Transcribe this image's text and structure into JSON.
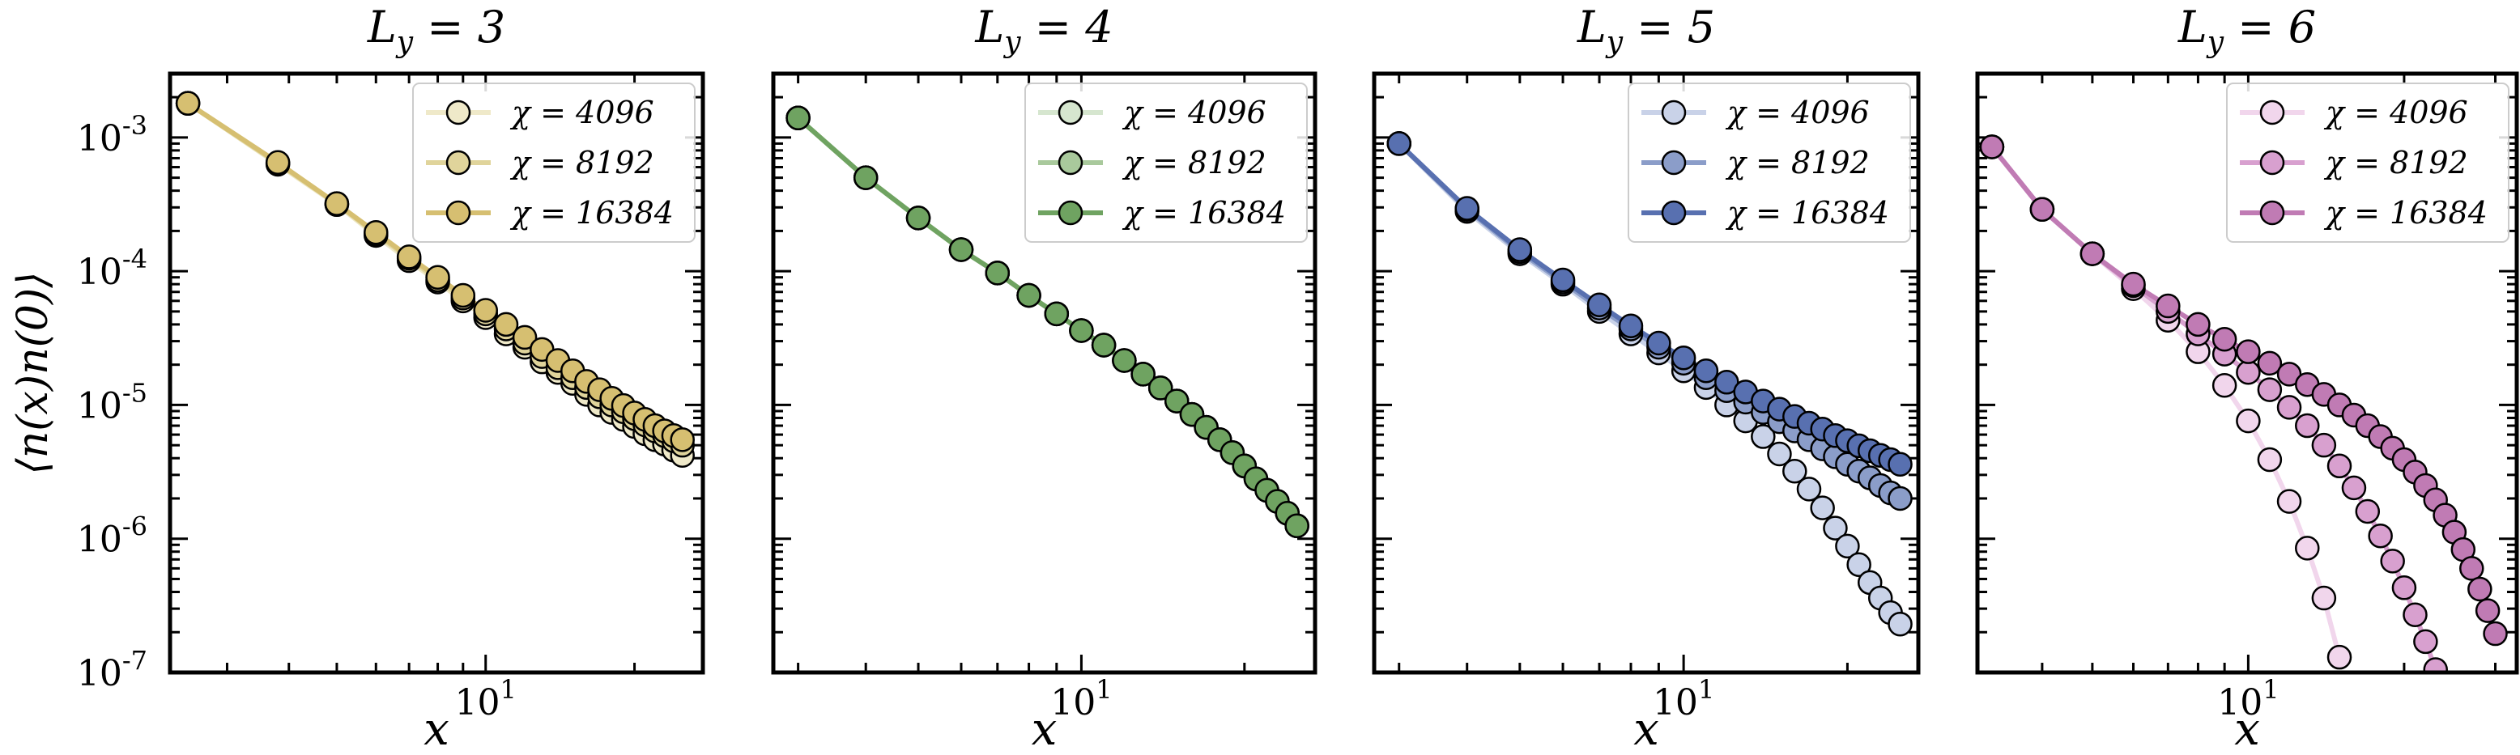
{
  "chart_data": [
    {
      "type": "line",
      "title": "L_y = 3",
      "xlabel": "x",
      "ylabel": "⟨n(x)n(0)⟩",
      "xscale": "log",
      "yscale": "log",
      "xlim": [
        2.3,
        27.5
      ],
      "ylim": [
        1e-07,
        0.003
      ],
      "x_tick_label": "10^1",
      "legend_position": "top-right",
      "colors": [
        "#efe9c9",
        "#e0d49b",
        "#d6bf71"
      ],
      "series": [
        {
          "name": "χ = 4096",
          "x": [
            2.5,
            3.8,
            5,
            6,
            7,
            8,
            9,
            10,
            11,
            12,
            13,
            14,
            15,
            16,
            17,
            18,
            19,
            20,
            21,
            22,
            23,
            24,
            25
          ],
          "y": [
            0.0018,
            0.00063,
            0.000315,
            0.000185,
            0.00012,
            8.3e-05,
            6e-05,
            4.5e-05,
            3.4e-05,
            2.7e-05,
            2.1e-05,
            1.75e-05,
            1.45e-05,
            1.2e-05,
            1e-05,
            8.8e-06,
            7.8e-06,
            6.9e-06,
            6.1e-06,
            5.5e-06,
            5.1e-06,
            4.6e-06,
            4.2e-06
          ]
        },
        {
          "name": "χ = 8192",
          "x": [
            2.5,
            3.8,
            5,
            6,
            7,
            8,
            9,
            10,
            11,
            12,
            13,
            14,
            15,
            16,
            17,
            18,
            19,
            20,
            21,
            22,
            23,
            24,
            25
          ],
          "y": [
            0.0018,
            0.00064,
            0.00032,
            0.00019,
            0.000125,
            8.6e-05,
            6.3e-05,
            4.8e-05,
            3.7e-05,
            2.9e-05,
            2.3e-05,
            1.9e-05,
            1.6e-05,
            1.35e-05,
            1.15e-05,
            1e-05,
            8.9e-06,
            7.9e-06,
            7.1e-06,
            6.4e-06,
            5.9e-06,
            5.4e-06,
            5e-06
          ]
        },
        {
          "name": "χ = 16384",
          "x": [
            2.5,
            3.8,
            5,
            6,
            7,
            8,
            9,
            10,
            11,
            12,
            13,
            14,
            15,
            16,
            17,
            18,
            19,
            20,
            21,
            22,
            23,
            24,
            25
          ],
          "y": [
            0.0018,
            0.00065,
            0.00032,
            0.000195,
            0.000128,
            9e-05,
            6.6e-05,
            5.1e-05,
            4e-05,
            3.2e-05,
            2.6e-05,
            2.15e-05,
            1.8e-05,
            1.5e-05,
            1.3e-05,
            1.12e-05,
            9.9e-06,
            8.7e-06,
            7.8e-06,
            7e-06,
            6.4e-06,
            5.9e-06,
            5.5e-06
          ]
        }
      ]
    },
    {
      "type": "line",
      "title": "L_y = 4",
      "xlabel": "x",
      "ylabel": "",
      "xscale": "log",
      "yscale": "log",
      "xlim": [
        2.7,
        27
      ],
      "ylim": [
        1e-07,
        0.003
      ],
      "x_tick_label": "10^1",
      "legend_position": "top-right",
      "colors": [
        "#d6e6cf",
        "#a9c99c",
        "#6fa361"
      ],
      "series": [
        {
          "name": "χ = 4096",
          "x": [
            3,
            4,
            5,
            6,
            7,
            8,
            9,
            10,
            11,
            12,
            13,
            14,
            15,
            16,
            17,
            18,
            19,
            20,
            21,
            22,
            23,
            24,
            25
          ],
          "y": [
            0.0014,
            0.0005,
            0.00025,
            0.000145,
            9.7e-05,
            6.6e-05,
            4.8e-05,
            3.6e-05,
            2.8e-05,
            2.15e-05,
            1.7e-05,
            1.34e-05,
            1.07e-05,
            8.5e-06,
            6.8e-06,
            5.5e-06,
            4.4e-06,
            3.5e-06,
            2.8e-06,
            2.3e-06,
            1.9e-06,
            1.55e-06,
            1.25e-06
          ]
        },
        {
          "name": "χ = 8192",
          "x": [
            3,
            4,
            5,
            6,
            7,
            8,
            9,
            10,
            11,
            12,
            13,
            14,
            15,
            16,
            17,
            18,
            19,
            20,
            21,
            22,
            23,
            24,
            25
          ],
          "y": [
            0.0014,
            0.0005,
            0.00025,
            0.000145,
            9.7e-05,
            6.6e-05,
            4.8e-05,
            3.6e-05,
            2.8e-05,
            2.15e-05,
            1.7e-05,
            1.34e-05,
            1.07e-05,
            8.5e-06,
            6.8e-06,
            5.5e-06,
            4.4e-06,
            3.5e-06,
            2.8e-06,
            2.3e-06,
            1.9e-06,
            1.55e-06,
            1.25e-06
          ]
        },
        {
          "name": "χ = 16384",
          "x": [
            3,
            4,
            5,
            6,
            7,
            8,
            9,
            10,
            11,
            12,
            13,
            14,
            15,
            16,
            17,
            18,
            19,
            20,
            21,
            22,
            23,
            24,
            25
          ],
          "y": [
            0.0014,
            0.0005,
            0.00025,
            0.000145,
            9.7e-05,
            6.6e-05,
            4.8e-05,
            3.6e-05,
            2.8e-05,
            2.15e-05,
            1.7e-05,
            1.34e-05,
            1.07e-05,
            8.5e-06,
            6.8e-06,
            5.5e-06,
            4.4e-06,
            3.5e-06,
            2.8e-06,
            2.3e-06,
            1.9e-06,
            1.55e-06,
            1.25e-06
          ]
        }
      ]
    },
    {
      "type": "line",
      "title": "L_y = 5",
      "xlabel": "x",
      "ylabel": "",
      "xscale": "log",
      "yscale": "log",
      "xlim": [
        2.7,
        27
      ],
      "ylim": [
        1e-07,
        0.003
      ],
      "x_tick_label": "10^1",
      "legend_position": "top-right",
      "colors": [
        "#c9d2e8",
        "#8b9dc9",
        "#5870b0"
      ],
      "series": [
        {
          "name": "χ = 4096",
          "x": [
            3,
            4,
            5,
            6,
            7,
            8,
            9,
            10,
            11,
            12,
            13,
            14,
            15,
            16,
            17,
            18,
            19,
            20,
            21,
            22,
            23,
            24,
            25
          ],
          "y": [
            0.0009,
            0.00028,
            0.000135,
            8e-05,
            5e-05,
            3.4e-05,
            2.45e-05,
            1.8e-05,
            1.35e-05,
            1e-05,
            7.6e-06,
            5.8e-06,
            4.3e-06,
            3.2e-06,
            2.35e-06,
            1.7e-06,
            1.2e-06,
            8.8e-07,
            6.4e-07,
            4.7e-07,
            3.6e-07,
            2.8e-07,
            2.3e-07
          ]
        },
        {
          "name": "χ = 8192",
          "x": [
            3,
            4,
            5,
            6,
            7,
            8,
            9,
            10,
            11,
            12,
            13,
            14,
            15,
            16,
            17,
            18,
            19,
            20,
            21,
            22,
            23,
            24,
            25
          ],
          "y": [
            0.0009,
            0.00029,
            0.00014,
            8.3e-05,
            5.3e-05,
            3.7e-05,
            2.7e-05,
            2.05e-05,
            1.6e-05,
            1.28e-05,
            1.05e-05,
            8.8e-06,
            7.5e-06,
            6.4e-06,
            5.5e-06,
            4.7e-06,
            4.1e-06,
            3.6e-06,
            3.2e-06,
            2.85e-06,
            2.5e-06,
            2.2e-06,
            2e-06
          ]
        },
        {
          "name": "χ = 16384",
          "x": [
            3,
            4,
            5,
            6,
            7,
            8,
            9,
            10,
            11,
            12,
            13,
            14,
            15,
            16,
            17,
            18,
            19,
            20,
            21,
            22,
            23,
            24,
            25
          ],
          "y": [
            0.0009,
            0.000295,
            0.000145,
            8.6e-05,
            5.6e-05,
            3.9e-05,
            2.9e-05,
            2.25e-05,
            1.8e-05,
            1.48e-05,
            1.25e-05,
            1.07e-05,
            9.3e-06,
            8.2e-06,
            7.3e-06,
            6.6e-06,
            5.9e-06,
            5.4e-06,
            4.95e-06,
            4.55e-06,
            4.2e-06,
            3.9e-06,
            3.6e-06
          ]
        }
      ]
    },
    {
      "type": "line",
      "title": "L_y = 6",
      "xlabel": "x",
      "ylabel": "",
      "xscale": "log",
      "yscale": "log",
      "xlim": [
        3.0,
        33
      ],
      "ylim": [
        1e-07,
        0.003
      ],
      "x_tick_label": "10^1",
      "legend_position": "top-right",
      "colors": [
        "#f1d6ec",
        "#d8a0cf",
        "#c07bb4"
      ],
      "series": [
        {
          "name": "χ = 4096",
          "x": [
            3.2,
            4,
            5,
            6,
            7,
            8,
            9,
            10,
            11,
            12,
            13,
            14,
            15
          ],
          "y": [
            0.00085,
            0.00029,
            0.000135,
            7.4e-05,
            4.3e-05,
            2.5e-05,
            1.4e-05,
            7.6e-06,
            3.9e-06,
            1.9e-06,
            8.5e-07,
            3.6e-07,
            1.3e-07
          ]
        },
        {
          "name": "χ = 8192",
          "x": [
            3.2,
            4,
            5,
            6,
            7,
            8,
            9,
            10,
            11,
            12,
            13,
            14,
            15,
            16,
            17,
            18,
            19,
            20,
            21,
            22,
            23
          ],
          "y": [
            0.00085,
            0.00029,
            0.000135,
            7.8e-05,
            5e-05,
            3.4e-05,
            2.4e-05,
            1.75e-05,
            1.3e-05,
            9.6e-06,
            7e-06,
            5e-06,
            3.5e-06,
            2.4e-06,
            1.6e-06,
            1.05e-06,
            6.8e-07,
            4.3e-07,
            2.7e-07,
            1.7e-07,
            1.05e-07
          ]
        },
        {
          "name": "χ = 16384",
          "x": [
            3.2,
            4,
            5,
            6,
            7,
            8,
            9,
            10,
            11,
            12,
            13,
            14,
            15,
            16,
            17,
            18,
            19,
            20,
            21,
            22,
            23,
            24,
            25,
            26,
            27,
            28,
            29,
            30
          ],
          "y": [
            0.00085,
            0.00029,
            0.000135,
            8e-05,
            5.5e-05,
            4e-05,
            3.1e-05,
            2.5e-05,
            2.05e-05,
            1.7e-05,
            1.42e-05,
            1.2e-05,
            1e-05,
            8.4e-06,
            7e-06,
            5.8e-06,
            4.75e-06,
            3.9e-06,
            3.15e-06,
            2.5e-06,
            1.95e-06,
            1.5e-06,
            1.12e-06,
            8.3e-07,
            6e-07,
            4.2e-07,
            2.9e-07,
            1.95e-07
          ]
        }
      ]
    }
  ]
}
